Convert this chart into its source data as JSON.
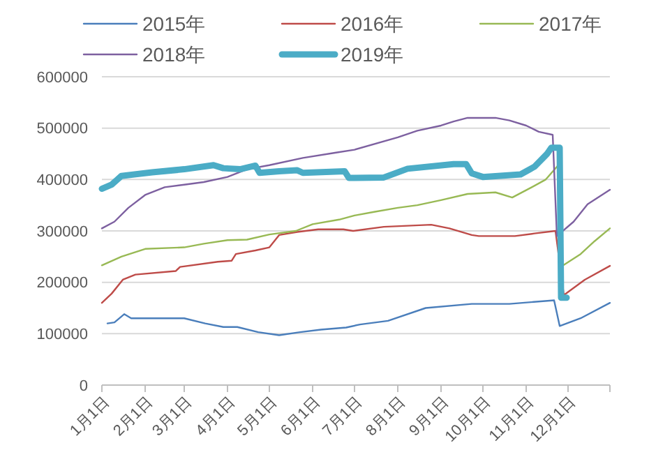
{
  "chart_data": {
    "type": "line",
    "legend": "top",
    "grid": "y",
    "ylim": [
      0,
      600000
    ],
    "yticks": [
      0,
      100000,
      200000,
      300000,
      400000,
      500000,
      600000
    ],
    "xlim": [
      "--01-01",
      "--12-31"
    ],
    "xticks": [
      {
        "value": "--01-01",
        "label": "1月1日"
      },
      {
        "value": "--02-01",
        "label": "2月1日"
      },
      {
        "value": "--03-01",
        "label": "3月1日"
      },
      {
        "value": "--04-01",
        "label": "4月1日"
      },
      {
        "value": "--05-01",
        "label": "5月1日"
      },
      {
        "value": "--06-01",
        "label": "6月1日"
      },
      {
        "value": "--07-01",
        "label": "7月1日"
      },
      {
        "value": "--08-01",
        "label": "8月1日"
      },
      {
        "value": "--09-01",
        "label": "9月1日"
      },
      {
        "value": "--10-01",
        "label": "10月1日"
      },
      {
        "value": "--11-01",
        "label": "11月1日"
      },
      {
        "value": "--12-01",
        "label": "12月1日"
      },
      {
        "value": "--12-31",
        "label": null
      }
    ],
    "series": [
      {
        "name": "2015年",
        "color": "#4a7ebb",
        "x": [
          "--01-05",
          "--01-10",
          "--01-17",
          "--01-22",
          "--02-15",
          "--03-01",
          "--03-16",
          "--03-29",
          "--04-08",
          "--04-23",
          "--05-08",
          "--05-23",
          "--06-07",
          "--06-25",
          "--07-05",
          "--07-25",
          "--08-21",
          "--09-23",
          "--10-20",
          "--11-21",
          "--11-25",
          "--12-10",
          "--12-31"
        ],
        "values": [
          120000,
          122000,
          138000,
          130000,
          130000,
          130000,
          120000,
          113000,
          113000,
          103000,
          97000,
          103000,
          108000,
          112000,
          118000,
          125000,
          150000,
          158000,
          158000,
          165000,
          115000,
          130000,
          160000
        ]
      },
      {
        "name": "2016年",
        "color": "#be4b48",
        "x": [
          "--01-01",
          "--01-08",
          "--01-16",
          "--01-25",
          "--02-23",
          "--02-26",
          "--03-25",
          "--04-04",
          "--04-07",
          "--04-21",
          "--05-01",
          "--05-08",
          "--05-21",
          "--06-05",
          "--06-23",
          "--06-30",
          "--07-22",
          "--08-25",
          "--09-07",
          "--09-23",
          "--09-28",
          "--10-24",
          "--11-07",
          "--11-22",
          "--11-28",
          "--12-13",
          "--12-31"
        ],
        "values": [
          160000,
          178000,
          205000,
          215000,
          222000,
          230000,
          240000,
          242000,
          255000,
          262000,
          268000,
          292000,
          298000,
          303000,
          303000,
          300000,
          308000,
          312000,
          305000,
          292000,
          290000,
          290000,
          295000,
          300000,
          175000,
          205000,
          232000
        ]
      },
      {
        "name": "2017年",
        "color": "#98b954",
        "x": [
          "--01-01",
          "--01-15",
          "--02-01",
          "--03-01",
          "--03-15",
          "--04-01",
          "--04-15",
          "--05-01",
          "--05-20",
          "--06-01",
          "--06-20",
          "--07-01",
          "--07-15",
          "--08-01",
          "--08-15",
          "--09-01",
          "--09-20",
          "--10-10",
          "--10-22",
          "--11-05",
          "--11-15",
          "--11-24",
          "--11-27",
          "--12-10",
          "--12-20",
          "--12-31"
        ],
        "values": [
          233000,
          250000,
          265000,
          268000,
          275000,
          282000,
          283000,
          293000,
          300000,
          313000,
          322000,
          330000,
          337000,
          345000,
          350000,
          360000,
          372000,
          375000,
          365000,
          385000,
          400000,
          428000,
          232000,
          255000,
          280000,
          305000
        ]
      },
      {
        "name": "2018年",
        "color": "#7d60a0",
        "x": [
          "--01-01",
          "--01-10",
          "--01-20",
          "--02-01",
          "--02-15",
          "--03-01",
          "--03-15",
          "--04-01",
          "--04-15",
          "--05-01",
          "--05-25",
          "--06-17",
          "--07-01",
          "--08-01",
          "--08-15",
          "--09-01",
          "--09-10",
          "--09-20",
          "--10-10",
          "--10-20",
          "--11-01",
          "--11-10",
          "--11-20",
          "--11-23",
          "--12-05",
          "--12-15",
          "--12-31"
        ],
        "values": [
          305000,
          318000,
          345000,
          370000,
          385000,
          390000,
          395000,
          405000,
          420000,
          428000,
          442000,
          452000,
          458000,
          482000,
          495000,
          505000,
          513000,
          520000,
          520000,
          515000,
          505000,
          493000,
          487000,
          290000,
          318000,
          352000,
          380000
        ]
      },
      {
        "name": "2019年",
        "color": "#4bacc6",
        "x": [
          "--01-01",
          "--01-08",
          "--01-15",
          "--02-06",
          "--03-01",
          "--03-22",
          "--03-29",
          "--04-10",
          "--04-21",
          "--04-24",
          "--05-08",
          "--05-21",
          "--05-25",
          "--06-24",
          "--06-27",
          "--07-22",
          "--08-08",
          "--09-10",
          "--09-19",
          "--09-23",
          "--10-01",
          "--10-28",
          "--11-07",
          "--11-16",
          "--11-19",
          "--11-25",
          "--11-26",
          "--11-30"
        ],
        "values": [
          382000,
          390000,
          407000,
          414000,
          420000,
          428000,
          422000,
          420000,
          427000,
          413000,
          416000,
          418000,
          413000,
          416000,
          403000,
          404000,
          421000,
          430000,
          430000,
          412000,
          405000,
          410000,
          425000,
          450000,
          462000,
          462000,
          170000,
          170000
        ]
      }
    ]
  }
}
